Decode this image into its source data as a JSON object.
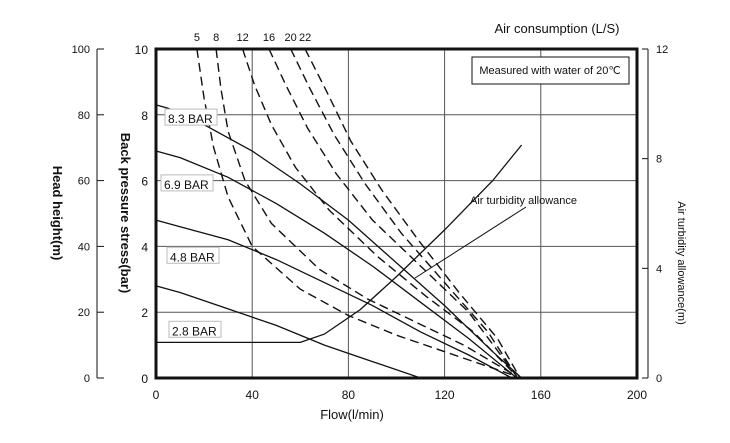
{
  "chart_data": {
    "type": "line",
    "note": "Measured with water of 20℃",
    "top_axis_title": "Air consumption (L/S)",
    "top_tick_labels": [
      "5",
      "8",
      "12",
      "16",
      "20",
      "22"
    ],
    "xlabel": "Flow(l/min)",
    "xlim": [
      0,
      200
    ],
    "xticks": [
      0,
      40,
      80,
      120,
      160,
      200
    ],
    "ylabel": "Back pressure stress(bar)",
    "ylim": [
      0,
      10
    ],
    "yticks": [
      0,
      2,
      4,
      6,
      8,
      10
    ],
    "y2label": "Head height(m)",
    "y2lim": [
      0,
      100
    ],
    "y2ticks": [
      0,
      20,
      40,
      60,
      80,
      100
    ],
    "y3label": "Air turbidity allowance(m)",
    "y3lim": [
      0,
      12
    ],
    "y3ticks": [
      0,
      4,
      8,
      12
    ],
    "grid": true,
    "pressure_series": [
      {
        "name": "8.3 BAR",
        "x": [
          0,
          5,
          20,
          40,
          60,
          80,
          100,
          120,
          140,
          152
        ],
        "y": [
          8.3,
          8.2,
          7.7,
          6.9,
          5.9,
          4.8,
          3.5,
          2.2,
          0.8,
          0
        ]
      },
      {
        "name": "6.9 BAR",
        "x": [
          0,
          10,
          30,
          50,
          70,
          90,
          110,
          130,
          150
        ],
        "y": [
          6.9,
          6.7,
          6.1,
          5.3,
          4.4,
          3.4,
          2.3,
          1.2,
          0
        ]
      },
      {
        "name": "4.8 BAR",
        "x": [
          0,
          10,
          30,
          50,
          70,
          90,
          110,
          130,
          148
        ],
        "y": [
          4.8,
          4.6,
          4.2,
          3.6,
          2.9,
          2.2,
          1.4,
          0.7,
          0
        ]
      },
      {
        "name": "2.8 BAR",
        "x": [
          0,
          10,
          30,
          50,
          70,
          90,
          110
        ],
        "y": [
          2.8,
          2.6,
          2.1,
          1.6,
          1.0,
          0.5,
          0
        ]
      }
    ],
    "air_consumption_series": [
      {
        "name": "5",
        "x": [
          17,
          20,
          24,
          30,
          40,
          60,
          80,
          100,
          120,
          140,
          150
        ],
        "y": [
          10,
          8.5,
          7,
          5.5,
          4.0,
          2.7,
          1.9,
          1.3,
          0.8,
          0.3,
          0.05
        ]
      },
      {
        "name": "8",
        "x": [
          25,
          27,
          30,
          37,
          48,
          68,
          88,
          108,
          128,
          150
        ],
        "y": [
          10,
          8.8,
          7.5,
          6.0,
          4.7,
          3.3,
          2.4,
          1.7,
          1.0,
          0.05
        ]
      },
      {
        "name": "12",
        "x": [
          36,
          41,
          48,
          58,
          72,
          92,
          112,
          132,
          150
        ],
        "y": [
          10,
          8.9,
          7.7,
          6.4,
          5.1,
          3.7,
          2.5,
          1.4,
          0.05
        ]
      },
      {
        "name": "16",
        "x": [
          47,
          54,
          63,
          75,
          90,
          110,
          130,
          150
        ],
        "y": [
          10,
          8.9,
          7.6,
          6.2,
          4.8,
          3.4,
          2.0,
          0.05
        ]
      },
      {
        "name": "20",
        "x": [
          56,
          64,
          74,
          87,
          102,
          120,
          138,
          150
        ],
        "y": [
          10,
          8.8,
          7.4,
          5.9,
          4.4,
          2.9,
          1.4,
          0.05
        ]
      },
      {
        "name": "22",
        "x": [
          62,
          71,
          81,
          94,
          109,
          126,
          142,
          151
        ],
        "y": [
          10,
          8.7,
          7.2,
          5.7,
          4.2,
          2.6,
          1.2,
          0.05
        ]
      }
    ],
    "air_turbidity_series": {
      "name": "Air turbidity allowance",
      "x": [
        0,
        60,
        70,
        85,
        100,
        120,
        140,
        152
      ],
      "y": [
        1.3,
        1.3,
        1.6,
        2.5,
        3.7,
        5.4,
        7.2,
        8.5
      ]
    },
    "air_turbidity_label": "Air turbidity allowance"
  }
}
